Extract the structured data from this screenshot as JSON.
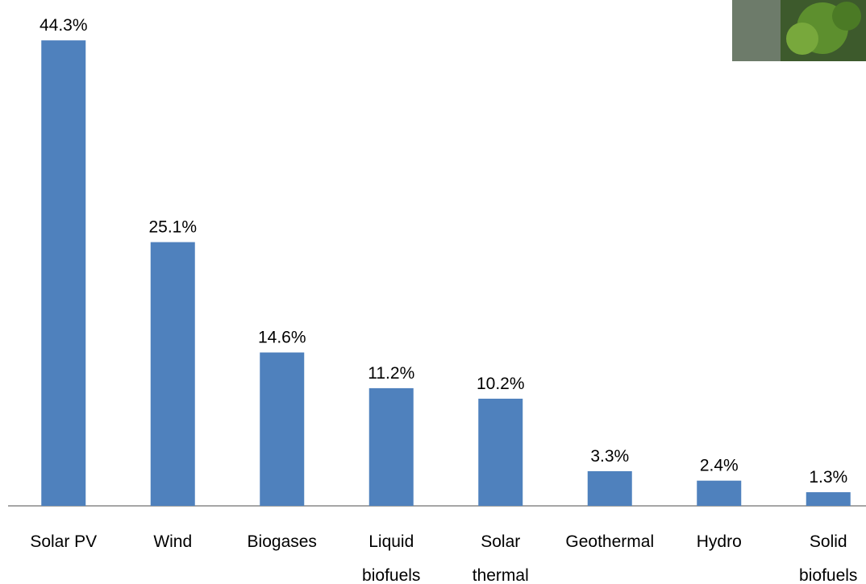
{
  "chart_data": {
    "type": "bar",
    "categories": [
      "Solar PV",
      "Wind",
      "Biogases",
      "Liquid\nbiofuels",
      "Solar\nthermal",
      "Geothermal",
      "Hydro",
      "Solid\nbiofuels"
    ],
    "values": [
      44.3,
      25.1,
      14.6,
      11.2,
      10.2,
      3.3,
      2.4,
      1.3
    ],
    "value_labels": [
      "44.3%",
      "25.1%",
      "14.6%",
      "11.2%",
      "10.2%",
      "3.3%",
      "2.4%",
      "1.3%"
    ],
    "color": "#4f81bd",
    "ylim": [
      0,
      45
    ]
  }
}
